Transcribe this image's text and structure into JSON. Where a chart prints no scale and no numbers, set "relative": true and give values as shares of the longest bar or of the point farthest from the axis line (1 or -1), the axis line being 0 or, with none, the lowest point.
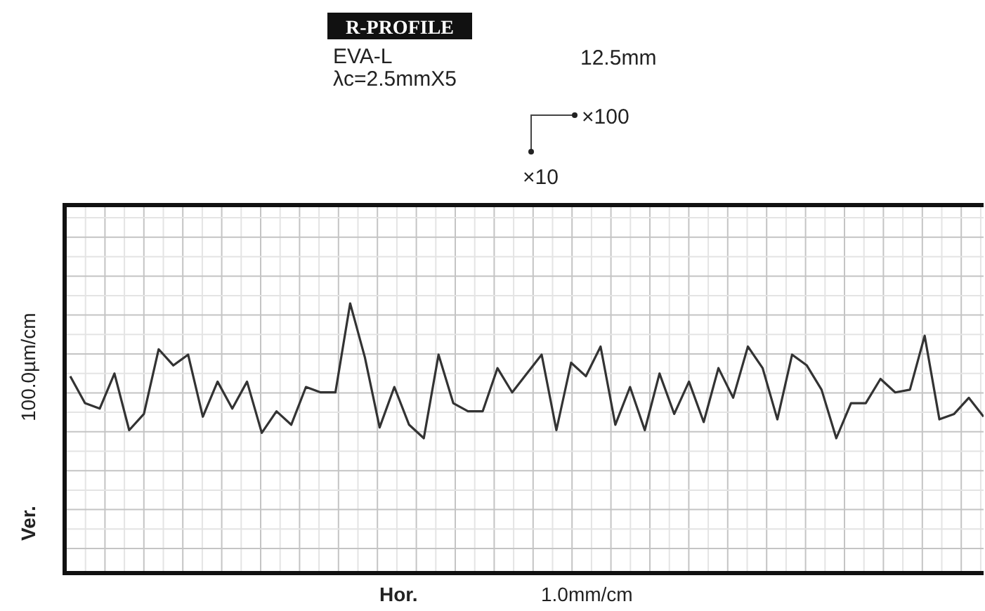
{
  "chart_data": {
    "type": "line",
    "title": "R-PROFILE",
    "annotations": [
      "EVA-L",
      "12.5mm",
      "λc=2.5mmX5",
      "×100",
      "×10"
    ],
    "xlabel": "Hor. 1.0mm/cm",
    "ylabel": "Ver. 100.0µm/cm",
    "relative": true,
    "grid": true,
    "line_style": "solid",
    "categories": [
      null,
      null,
      null,
      null,
      null,
      null,
      null,
      null,
      null,
      null,
      null,
      null,
      null,
      null,
      null,
      null,
      null,
      null,
      null,
      null,
      null,
      null,
      null,
      null,
      null,
      null,
      null,
      null,
      null,
      null,
      null,
      null,
      null,
      null,
      null,
      null,
      null,
      null,
      null,
      null,
      null,
      null,
      null,
      null,
      null,
      null,
      null,
      null,
      null,
      null,
      null,
      null,
      null,
      null,
      null,
      null,
      null,
      null,
      null,
      null,
      null,
      null,
      null
    ],
    "series": [
      {
        "color": "#333333",
        "values": [
          0.73,
          0.63,
          0.61,
          0.74,
          0.53,
          0.59,
          0.83,
          0.77,
          0.81,
          0.58,
          0.71,
          0.61,
          0.71,
          0.52,
          0.6,
          0.55,
          0.69,
          0.67,
          0.67,
          1.0,
          0.8,
          0.54,
          0.69,
          0.55,
          0.5,
          0.81,
          0.63,
          0.6,
          0.6,
          0.76,
          0.67,
          0.74,
          0.81,
          0.53,
          0.78,
          0.73,
          0.84,
          0.55,
          0.69,
          0.53,
          0.74,
          0.59,
          0.71,
          0.56,
          0.76,
          0.65,
          0.84,
          0.76,
          0.57,
          0.81,
          0.77,
          0.68,
          0.5,
          0.63,
          0.63,
          0.72,
          0.67,
          0.68,
          0.88,
          0.57,
          0.59,
          0.65,
          0.58
        ]
      }
    ]
  }
}
